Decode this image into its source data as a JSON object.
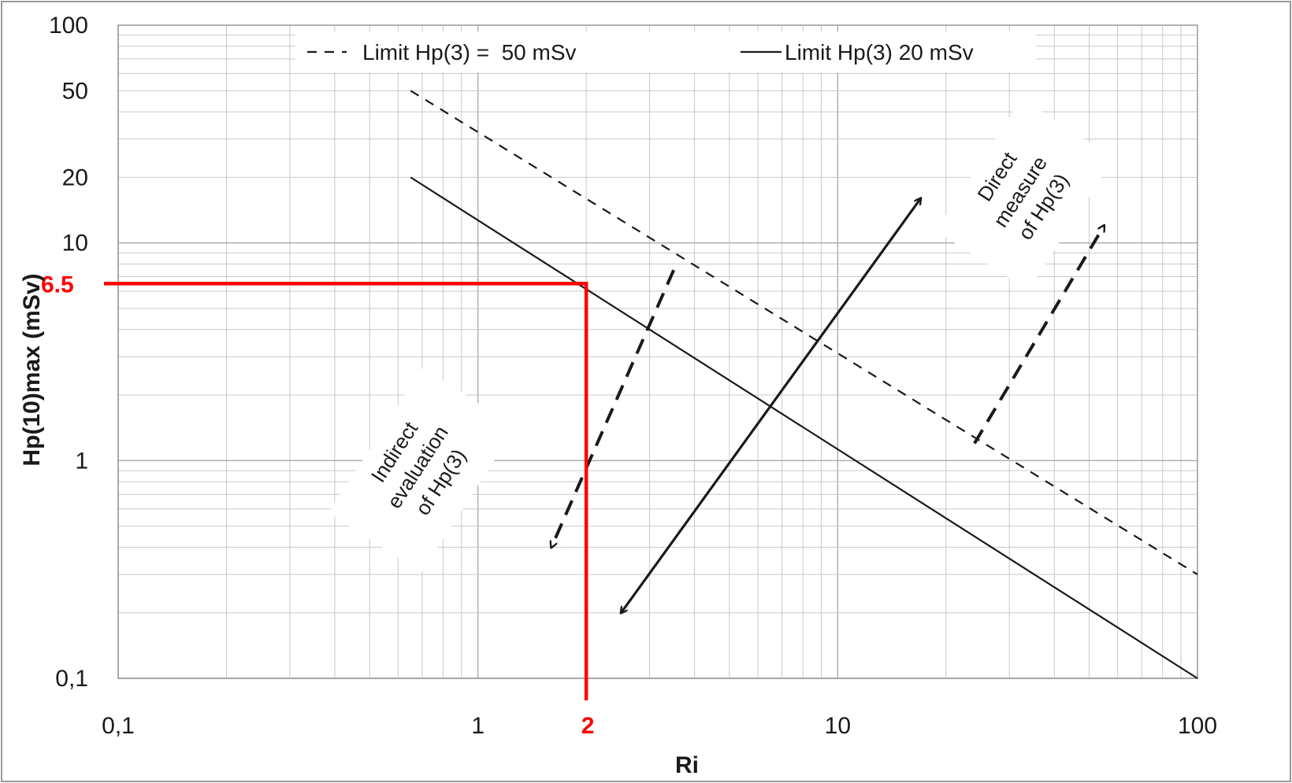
{
  "chart_data": {
    "type": "line",
    "x_scale": "log",
    "y_scale": "log",
    "xlim": [
      0.1,
      100
    ],
    "ylim": [
      0.1,
      100
    ],
    "grid": true,
    "legend_position": "top",
    "xlabel": "Ri",
    "ylabel": "Hp(10)max (mSv)",
    "x_ticks": [
      "0,1",
      "1",
      "10",
      "100"
    ],
    "y_ticks": [
      {
        "value": 0.1,
        "label": "0,1"
      },
      {
        "value": 1,
        "label": "1"
      },
      {
        "value": 10,
        "label": "10"
      },
      {
        "value": 20,
        "label": "20"
      },
      {
        "value": 50,
        "label": "50"
      },
      {
        "value": 100,
        "label": "100"
      }
    ],
    "series": [
      {
        "name": "Limit Hp(3) =  50 mSv",
        "style": "dashed",
        "x": [
          0.65,
          100
        ],
        "y": [
          50,
          0.3
        ]
      },
      {
        "name": "Limit Hp(3) 20 mSv",
        "style": "solid",
        "x": [
          0.65,
          100
        ],
        "y": [
          20,
          0.1
        ]
      }
    ],
    "annotations": {
      "indirect": {
        "lines": [
          "Indirect",
          "evaluation",
          "of Hp(3)"
        ]
      },
      "direct": {
        "lines": [
          "Direct",
          "measure",
          "of Hp(3)"
        ]
      },
      "arrows": [
        {
          "style": "dashed",
          "from": [
            3.5,
            7.5
          ],
          "to": [
            1.6,
            0.4
          ],
          "heads": "end"
        },
        {
          "style": "dashed",
          "from": [
            24,
            1.2
          ],
          "to": [
            55,
            12
          ],
          "heads": "end"
        },
        {
          "style": "solid",
          "from": [
            2.5,
            0.2
          ],
          "to": [
            17,
            16
          ],
          "heads": "both"
        }
      ]
    },
    "marker": {
      "x": 2,
      "y": 6.5,
      "x_label": "2",
      "y_label": "6.5",
      "color": "#ff0000"
    },
    "colors": {
      "line": "#1a1a1a",
      "marker": "#ff0000",
      "grid": "#c8c8c8"
    }
  }
}
